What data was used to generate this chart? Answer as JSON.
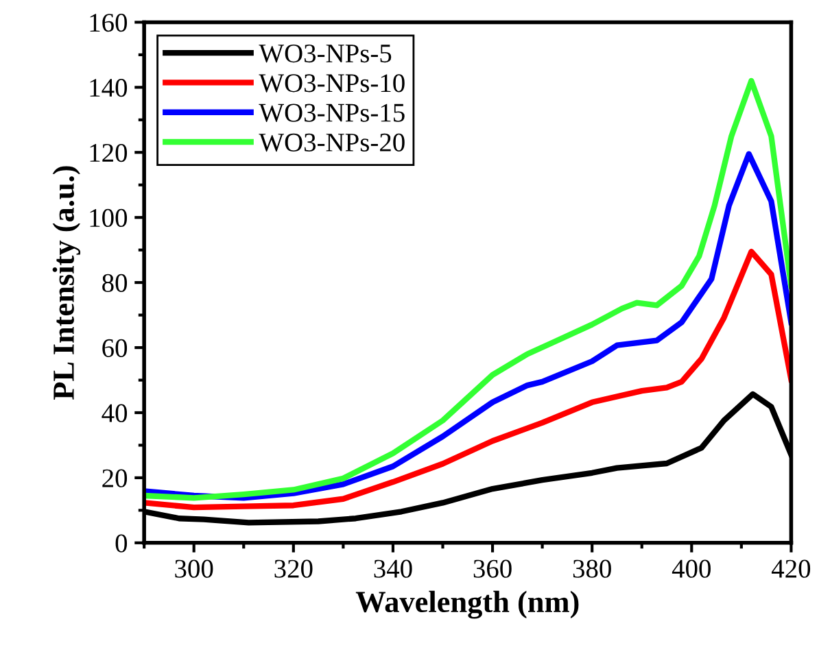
{
  "chart_data": {
    "type": "line",
    "xlabel": "Wavelength (nm)",
    "ylabel": "PL Intensity (a.u.)",
    "xlim": [
      290,
      420
    ],
    "ylim": [
      0,
      160
    ],
    "xticks": [
      300,
      320,
      340,
      360,
      380,
      400,
      420
    ],
    "yticks": [
      0,
      20,
      40,
      60,
      80,
      100,
      120,
      140,
      160
    ],
    "grid": false,
    "legend": "top left",
    "marker": "none",
    "line_style": "solid",
    "series": [
      {
        "name": "WO3-NPs-5",
        "color": "#000000",
        "x": [
          290,
          297,
          302,
          311,
          325,
          332.5,
          341.7,
          350,
          360,
          370,
          380,
          385,
          395,
          402,
          406.5,
          412.3,
          416,
          420
        ],
        "values": [
          9.6,
          7.5,
          7.2,
          6.2,
          6.6,
          7.5,
          9.6,
          12.3,
          16.6,
          19.3,
          21.5,
          23.0,
          24.4,
          29.2,
          37.6,
          45.7,
          41.8,
          27.1
        ]
      },
      {
        "name": "WO3-NPs-10",
        "color": "#ff0000",
        "x": [
          290,
          300,
          310,
          320,
          330,
          340,
          350,
          360,
          370,
          380,
          390,
          395,
          398,
          402,
          406.5,
          412,
          416,
          420
        ],
        "values": [
          12.3,
          10.9,
          11.2,
          11.5,
          13.5,
          18.7,
          24.3,
          31.3,
          36.9,
          43.2,
          46.7,
          47.7,
          49.5,
          56.6,
          69.2,
          89.5,
          82.5,
          50.2
        ]
      },
      {
        "name": "WO3-NPs-15",
        "color": "#0000ff",
        "x": [
          290,
          300,
          310,
          320,
          330,
          340,
          350,
          360,
          367,
          370,
          380,
          385,
          393,
          398,
          404,
          407.5,
          411.5,
          416,
          420
        ],
        "values": [
          15.9,
          14.5,
          13.8,
          15.2,
          18.0,
          23.5,
          32.7,
          43.2,
          48.4,
          49.5,
          55.8,
          60.7,
          62.2,
          67.8,
          81.1,
          103.6,
          119.5,
          105,
          67.8
        ]
      },
      {
        "name": "WO3-NPs-20",
        "color": "#33ff33",
        "x": [
          290,
          300,
          310,
          320,
          330,
          340,
          350,
          360,
          367,
          372,
          380,
          386,
          389,
          393,
          398,
          401.5,
          404.6,
          408,
          412,
          416,
          420
        ],
        "values": [
          14.5,
          13.8,
          14.9,
          16.3,
          19.8,
          27.5,
          37.6,
          51.6,
          58.0,
          61.5,
          67.1,
          72.0,
          73.8,
          73.0,
          79.0,
          88.1,
          103.6,
          125,
          142,
          125,
          79
        ]
      }
    ]
  }
}
